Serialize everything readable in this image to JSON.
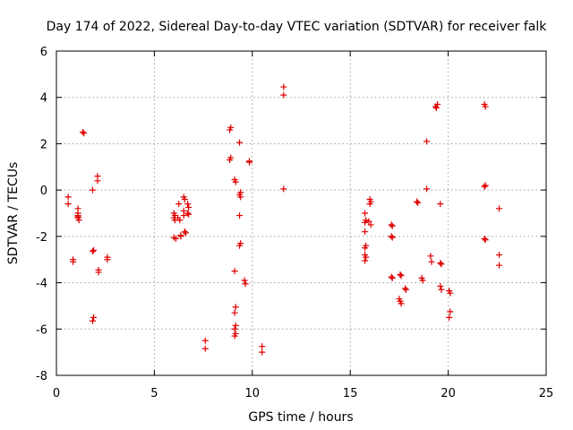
{
  "chart_data": {
    "type": "scatter",
    "title": "Day 174 of 2022, Sidereal Day-to-day VTEC variation (SDTVAR) for receiver falk",
    "xlabel": "GPS time / hours",
    "ylabel": "SDTVAR / TECUs",
    "xlim": [
      0,
      25
    ],
    "ylim": [
      -8,
      6
    ],
    "xticks": [
      0,
      5,
      10,
      15,
      20,
      25
    ],
    "yticks": [
      -8,
      -6,
      -4,
      -2,
      0,
      2,
      4,
      6
    ],
    "xtick_labels": [
      "0",
      "5",
      "10",
      "15",
      "20",
      "25"
    ],
    "ytick_labels": [
      "-8",
      "-6",
      "-4",
      "-2",
      "0",
      "2",
      "4",
      "6"
    ],
    "grid": true,
    "marker": "+",
    "color": "#e00000",
    "series": [
      {
        "name": "SDTVAR",
        "points": [
          [
            0.6,
            -0.3
          ],
          [
            0.6,
            -0.6
          ],
          [
            0.85,
            -3.0
          ],
          [
            0.85,
            -3.1
          ],
          [
            1.1,
            -0.8
          ],
          [
            1.1,
            -1.0
          ],
          [
            1.1,
            -1.1
          ],
          [
            1.1,
            -1.2
          ],
          [
            1.15,
            -1.3
          ],
          [
            1.1,
            -1.15
          ],
          [
            1.35,
            2.5
          ],
          [
            1.4,
            2.45
          ],
          [
            1.85,
            0.0
          ],
          [
            1.9,
            -2.6
          ],
          [
            1.85,
            -2.65
          ],
          [
            1.9,
            -5.5
          ],
          [
            1.85,
            -5.65
          ],
          [
            2.1,
            0.6
          ],
          [
            2.1,
            0.4
          ],
          [
            2.15,
            -3.45
          ],
          [
            2.15,
            -3.55
          ],
          [
            2.6,
            -2.9
          ],
          [
            2.6,
            -3.0
          ],
          [
            6.0,
            -1.0
          ],
          [
            6.05,
            -1.1
          ],
          [
            6.0,
            -1.2
          ],
          [
            6.05,
            -1.3
          ],
          [
            6.0,
            -2.05
          ],
          [
            6.1,
            -2.1
          ],
          [
            6.25,
            -0.6
          ],
          [
            6.2,
            -1.2
          ],
          [
            6.3,
            -1.3
          ],
          [
            6.35,
            -1.95
          ],
          [
            6.35,
            -2.0
          ],
          [
            6.5,
            -0.3
          ],
          [
            6.55,
            -0.4
          ],
          [
            6.5,
            -0.9
          ],
          [
            6.5,
            -1.1
          ],
          [
            6.55,
            -1.8
          ],
          [
            6.6,
            -1.85
          ],
          [
            6.7,
            -0.6
          ],
          [
            6.75,
            -0.75
          ],
          [
            6.7,
            -1.0
          ],
          [
            6.75,
            -1.05
          ],
          [
            8.85,
            2.6
          ],
          [
            8.9,
            2.7
          ],
          [
            8.85,
            1.3
          ],
          [
            8.9,
            1.4
          ],
          [
            9.1,
            0.45
          ],
          [
            9.15,
            0.35
          ],
          [
            9.1,
            -3.5
          ],
          [
            9.15,
            -5.05
          ],
          [
            9.1,
            -5.3
          ],
          [
            9.15,
            -5.85
          ],
          [
            9.1,
            -6.0
          ],
          [
            9.15,
            -6.2
          ],
          [
            9.1,
            -6.3
          ],
          [
            9.35,
            2.05
          ],
          [
            9.4,
            -0.1
          ],
          [
            9.35,
            -0.2
          ],
          [
            9.4,
            -0.3
          ],
          [
            9.35,
            -1.1
          ],
          [
            9.4,
            -2.3
          ],
          [
            9.35,
            -2.4
          ],
          [
            9.6,
            -3.9
          ],
          [
            9.65,
            -4.05
          ],
          [
            9.85,
            1.25
          ],
          [
            9.85,
            1.2
          ],
          [
            7.6,
            -6.5
          ],
          [
            7.6,
            -6.85
          ],
          [
            10.5,
            -6.75
          ],
          [
            10.5,
            -7.0
          ],
          [
            11.6,
            4.45
          ],
          [
            11.6,
            4.1
          ],
          [
            11.6,
            0.05
          ],
          [
            15.75,
            -1.0
          ],
          [
            15.8,
            -1.3
          ],
          [
            15.75,
            -1.4
          ],
          [
            15.75,
            -1.8
          ],
          [
            15.8,
            -2.4
          ],
          [
            15.75,
            -2.5
          ],
          [
            15.75,
            -2.8
          ],
          [
            15.8,
            -2.9
          ],
          [
            15.75,
            -3.05
          ],
          [
            15.95,
            -1.35
          ],
          [
            16.0,
            -0.4
          ],
          [
            16.05,
            -0.5
          ],
          [
            16.0,
            -0.6
          ],
          [
            16.05,
            -1.5
          ],
          [
            17.1,
            -1.5
          ],
          [
            17.15,
            -1.55
          ],
          [
            17.1,
            -2.0
          ],
          [
            17.15,
            -2.05
          ],
          [
            17.1,
            -3.75
          ],
          [
            17.15,
            -3.8
          ],
          [
            17.55,
            -3.65
          ],
          [
            17.6,
            -3.7
          ],
          [
            17.5,
            -4.7
          ],
          [
            17.55,
            -4.8
          ],
          [
            17.6,
            -4.9
          ],
          [
            17.8,
            -4.25
          ],
          [
            17.85,
            -4.3
          ],
          [
            18.4,
            -0.5
          ],
          [
            18.45,
            -0.55
          ],
          [
            18.65,
            -3.8
          ],
          [
            18.7,
            -3.9
          ],
          [
            18.9,
            2.1
          ],
          [
            18.9,
            0.05
          ],
          [
            19.1,
            -2.85
          ],
          [
            19.15,
            -3.1
          ],
          [
            19.35,
            3.6
          ],
          [
            19.45,
            3.7
          ],
          [
            19.4,
            3.55
          ],
          [
            19.6,
            -0.6
          ],
          [
            19.6,
            -3.15
          ],
          [
            19.65,
            -3.2
          ],
          [
            19.6,
            -4.15
          ],
          [
            19.65,
            -4.3
          ],
          [
            20.05,
            -4.35
          ],
          [
            20.1,
            -4.45
          ],
          [
            20.1,
            -5.25
          ],
          [
            20.05,
            -5.5
          ],
          [
            21.85,
            3.7
          ],
          [
            21.9,
            3.6
          ],
          [
            21.85,
            0.15
          ],
          [
            21.9,
            0.2
          ],
          [
            21.85,
            -2.1
          ],
          [
            21.9,
            -2.15
          ],
          [
            22.6,
            -0.8
          ],
          [
            22.6,
            -2.8
          ],
          [
            22.6,
            -3.25
          ]
        ]
      }
    ]
  }
}
